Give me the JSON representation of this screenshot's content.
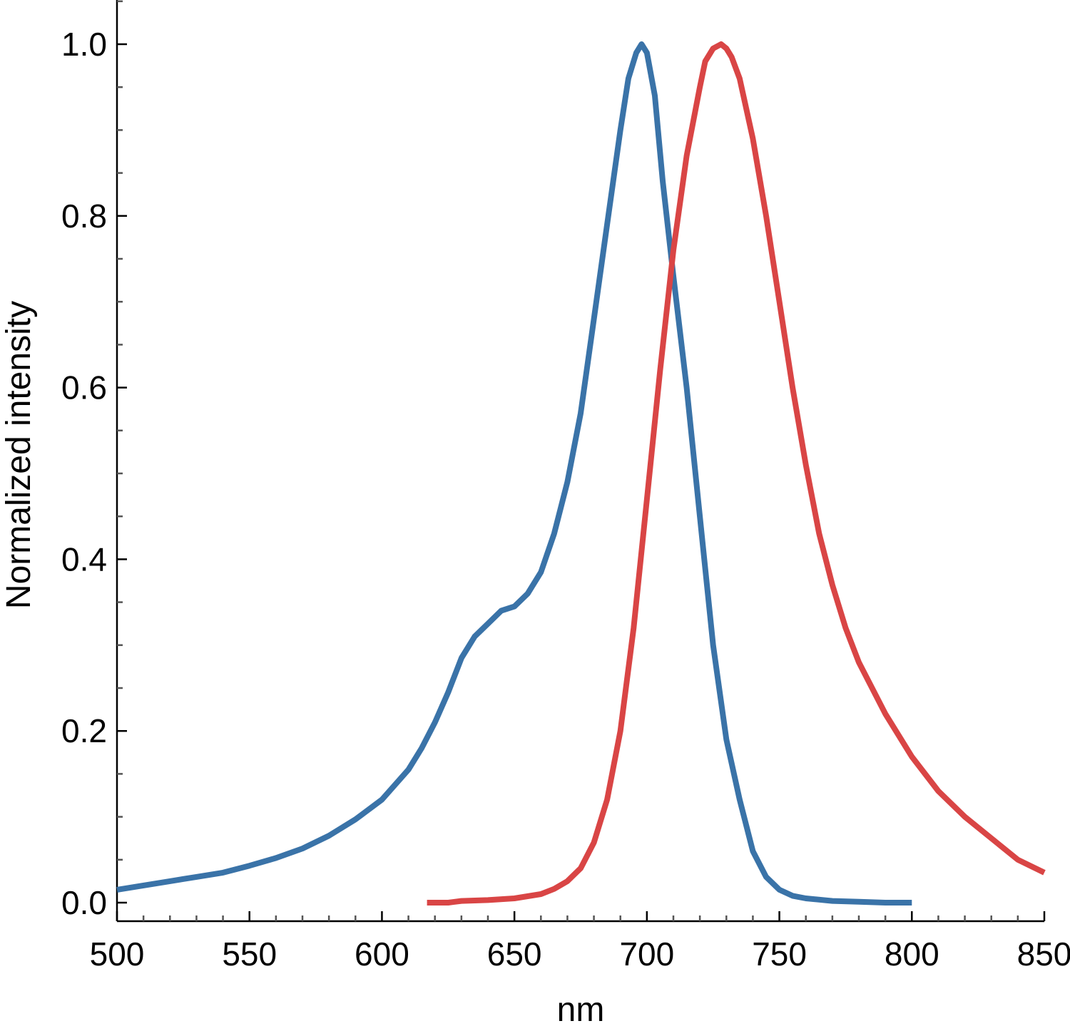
{
  "chart_data": {
    "type": "line",
    "title": "",
    "xlabel": "nm",
    "ylabel": "Normalized intensity",
    "xlim": [
      500,
      850
    ],
    "ylim": [
      -0.02,
      1.05
    ],
    "x_ticks": [
      500,
      550,
      600,
      650,
      700,
      750,
      800,
      850
    ],
    "x_tick_labels": [
      "500",
      "550",
      "600",
      "650",
      "700",
      "750",
      "800",
      "850"
    ],
    "y_ticks": [
      0.0,
      0.2,
      0.4,
      0.6,
      0.8,
      1.0
    ],
    "y_tick_labels": [
      "0.0",
      "0.2",
      "0.4",
      "0.6",
      "0.8",
      "1.0"
    ],
    "grid": false,
    "legend": "none",
    "series": [
      {
        "color": "#3a73a8",
        "x": [
          500,
          510,
          520,
          530,
          540,
          550,
          560,
          570,
          580,
          590,
          600,
          610,
          615,
          620,
          625,
          630,
          635,
          640,
          645,
          650,
          655,
          660,
          665,
          670,
          675,
          680,
          685,
          690,
          693,
          696,
          698,
          700,
          703,
          706,
          710,
          715,
          720,
          725,
          730,
          735,
          740,
          745,
          750,
          755,
          760,
          770,
          780,
          790,
          800
        ],
        "values": [
          0.015,
          0.02,
          0.025,
          0.03,
          0.035,
          0.043,
          0.052,
          0.063,
          0.078,
          0.097,
          0.12,
          0.155,
          0.18,
          0.21,
          0.245,
          0.285,
          0.31,
          0.325,
          0.34,
          0.345,
          0.36,
          0.385,
          0.43,
          0.49,
          0.57,
          0.68,
          0.79,
          0.9,
          0.96,
          0.99,
          1.0,
          0.99,
          0.94,
          0.84,
          0.73,
          0.6,
          0.45,
          0.3,
          0.19,
          0.12,
          0.06,
          0.03,
          0.015,
          0.008,
          0.005,
          0.002,
          0.001,
          0.0,
          0.0
        ]
      },
      {
        "color": "#d94545",
        "x": [
          617,
          625,
          630,
          640,
          650,
          660,
          665,
          670,
          675,
          680,
          685,
          690,
          695,
          700,
          705,
          710,
          715,
          720,
          722,
          725,
          728,
          730,
          732,
          735,
          740,
          745,
          750,
          755,
          760,
          765,
          770,
          775,
          780,
          790,
          800,
          810,
          820,
          830,
          840,
          850
        ],
        "values": [
          0.0,
          0.0,
          0.002,
          0.003,
          0.005,
          0.01,
          0.016,
          0.025,
          0.04,
          0.07,
          0.12,
          0.2,
          0.32,
          0.47,
          0.62,
          0.76,
          0.87,
          0.95,
          0.98,
          0.995,
          1.0,
          0.995,
          0.985,
          0.96,
          0.89,
          0.8,
          0.7,
          0.6,
          0.51,
          0.43,
          0.37,
          0.32,
          0.28,
          0.22,
          0.17,
          0.13,
          0.1,
          0.075,
          0.05,
          0.035
        ]
      }
    ]
  }
}
